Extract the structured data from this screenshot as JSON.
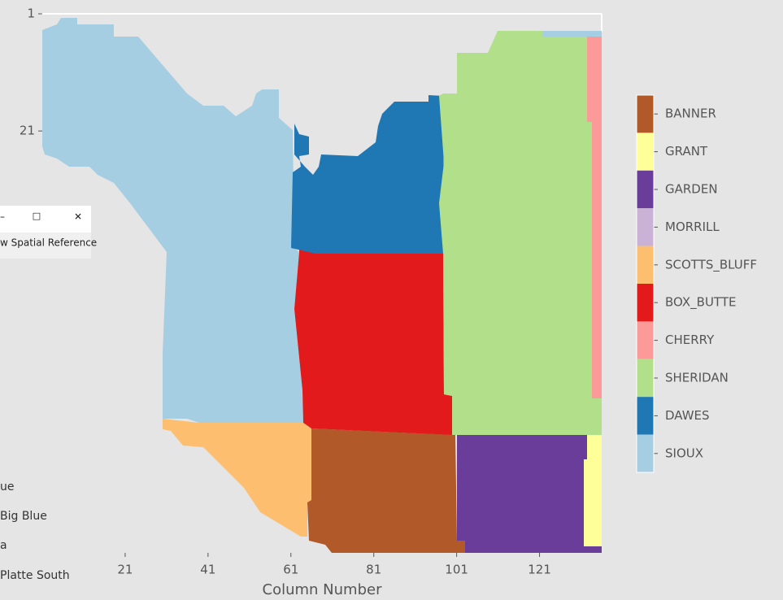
{
  "chart_data": {
    "type": "raster",
    "xlabel": "Column Number",
    "xlim": [
      1,
      136
    ],
    "xticks": [
      21,
      41,
      61,
      81,
      101,
      121
    ],
    "ylim": [
      1,
      93
    ],
    "yticks": [
      1,
      21
    ],
    "categories": [
      "BANNER",
      "GRANT",
      "GARDEN",
      "MORRILL",
      "SCOTTS_BLUFF",
      "BOX_BUTTE",
      "CHERRY",
      "SHERIDAN",
      "DAWES",
      "SIOUX"
    ],
    "colors": [
      "#b15928",
      "#ffff99",
      "#6a3d9a",
      "#cab2d6",
      "#fdbf6f",
      "#e31a1c",
      "#fb9a99",
      "#b2df8a",
      "#1f78b4",
      "#a6cee3"
    ]
  },
  "background_window": {
    "title_buttons": [
      "–",
      "☐",
      "✕"
    ],
    "menu": "w Spatial Reference",
    "list": [
      "ue",
      "Big Blue",
      "a",
      "Platte South"
    ]
  }
}
